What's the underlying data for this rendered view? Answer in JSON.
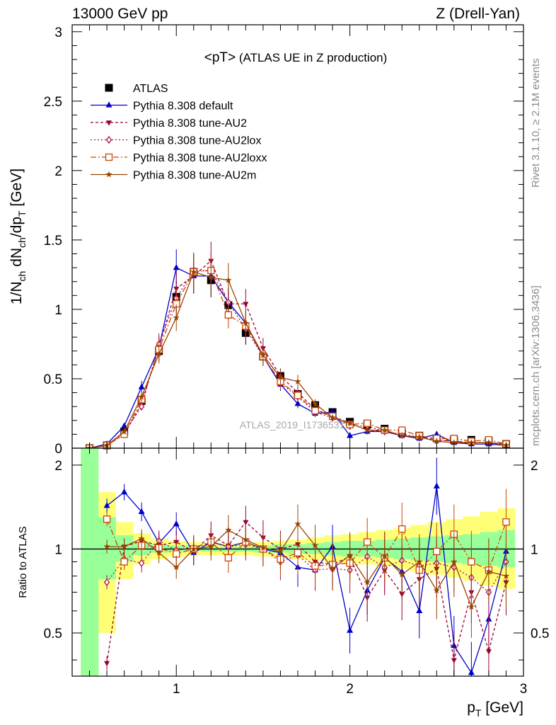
{
  "header": {
    "left": "13000 GeV pp",
    "right": "Z (Drell-Yan)"
  },
  "side_text": {
    "rivet": "Rivet 3.1.10, ≥ 2.1M events",
    "mcplots": "mcplots.cern.ch [arXiv:1306.3436]"
  },
  "watermark": "ATLAS_2019_I1736531",
  "chart_data": [
    {
      "type": "line",
      "title_main": "<pT>",
      "title_sub": " (ATLAS UE in Z production)",
      "ylabel": "1/N_ch dN_ch/dp_T [GeV]",
      "xlim": [
        0.4,
        3.0
      ],
      "ylim": [
        0,
        3.05
      ],
      "yticks": [
        0,
        0.5,
        1,
        1.5,
        2,
        2.5,
        3
      ],
      "ytick_labels": [
        "0",
        "0.5",
        "1",
        "1.5",
        "2",
        "2.5",
        "3"
      ],
      "x": [
        0.5,
        0.6,
        0.7,
        0.8,
        0.9,
        1.0,
        1.1,
        1.2,
        1.3,
        1.4,
        1.5,
        1.6,
        1.7,
        1.8,
        1.9,
        2.0,
        2.1,
        2.2,
        2.3,
        2.4,
        2.5,
        2.6,
        2.7,
        2.8,
        2.9
      ],
      "legend_position": "top-left",
      "series": [
        {
          "name": "ATLAS",
          "marker": "filled-square",
          "color": "#000000",
          "dash": "none",
          "values": [
            0.0,
            0.02,
            0.12,
            0.34,
            0.7,
            1.09,
            1.27,
            1.21,
            1.03,
            0.83,
            0.66,
            0.52,
            0.39,
            0.31,
            0.26,
            0.19,
            0.17,
            0.14,
            0.11,
            0.09,
            0.07,
            0.06,
            0.06,
            0.05,
            0.03
          ]
        },
        {
          "name": "Pythia 8.308 default",
          "marker": "filled-triangle-up",
          "color": "#0000cc",
          "dash": "none",
          "values": [
            0.0,
            0.03,
            0.16,
            0.44,
            0.72,
            1.3,
            1.24,
            1.24,
            1.05,
            0.9,
            0.66,
            0.46,
            0.32,
            0.25,
            0.26,
            0.09,
            0.12,
            0.12,
            0.09,
            0.07,
            0.1,
            0.04,
            0.03,
            0.03,
            0.02
          ]
        },
        {
          "name": "Pythia 8.308 tune-AU2",
          "marker": "filled-triangle-down",
          "color": "#990033",
          "dash": "4,3",
          "values": [
            0.0,
            0.02,
            0.1,
            0.32,
            0.73,
            1.15,
            1.24,
            1.35,
            1.04,
            1.04,
            0.72,
            0.52,
            0.4,
            0.28,
            0.23,
            0.18,
            0.13,
            0.12,
            0.09,
            0.08,
            0.06,
            0.05,
            0.04,
            0.04,
            0.03
          ]
        },
        {
          "name": "Pythia 8.308 tune-AU2lox",
          "marker": "open-diamond",
          "color": "#aa1155",
          "dash": "2,3",
          "values": [
            0.0,
            0.02,
            0.11,
            0.3,
            0.75,
            1.08,
            1.28,
            1.28,
            1.05,
            0.86,
            0.66,
            0.47,
            0.37,
            0.26,
            0.22,
            0.16,
            0.16,
            0.12,
            0.1,
            0.08,
            0.06,
            0.05,
            0.04,
            0.04,
            0.03
          ]
        },
        {
          "name": "Pythia 8.308 tune-AU2loxx",
          "marker": "open-square",
          "color": "#cc4400",
          "dash": "8,3,2,3",
          "values": [
            0.0,
            0.02,
            0.1,
            0.35,
            0.71,
            1.04,
            1.27,
            1.28,
            0.96,
            0.88,
            0.66,
            0.48,
            0.38,
            0.27,
            0.23,
            0.17,
            0.18,
            0.13,
            0.13,
            0.09,
            0.07,
            0.07,
            0.05,
            0.06,
            0.03
          ]
        },
        {
          "name": "Pythia 8.308 tune-AU2m",
          "marker": "filled-star",
          "color": "#994400",
          "dash": "none",
          "values": [
            0.0,
            0.02,
            0.12,
            0.37,
            0.68,
            0.94,
            1.27,
            1.23,
            1.21,
            0.9,
            0.67,
            0.51,
            0.48,
            0.32,
            0.22,
            0.18,
            0.13,
            0.13,
            0.09,
            0.08,
            0.05,
            0.04,
            0.04,
            0.04,
            0.02
          ]
        }
      ]
    },
    {
      "type": "line",
      "ylabel": "Ratio to ATLAS",
      "xlabel": "p_T [GeV]",
      "xlim": [
        0.4,
        3.0
      ],
      "ylim": [
        0.35,
        2.3
      ],
      "log_scale_y": true,
      "xticks": [
        1,
        2,
        3
      ],
      "xtick_labels": [
        "1",
        "2",
        "3"
      ],
      "yticks": [
        0.5,
        1,
        2
      ],
      "ytick_labels": [
        "0.5",
        "1",
        "2"
      ],
      "x": [
        0.6,
        0.7,
        0.8,
        0.9,
        1.0,
        1.1,
        1.2,
        1.3,
        1.4,
        1.5,
        1.6,
        1.7,
        1.8,
        1.9,
        2.0,
        2.1,
        2.2,
        2.3,
        2.4,
        2.5,
        2.6,
        2.7,
        2.8,
        2.9
      ],
      "band_x_edges": [
        0.45,
        0.55,
        0.65,
        0.75,
        0.85,
        0.95,
        1.05,
        1.15,
        1.25,
        1.35,
        1.45,
        1.55,
        1.65,
        1.75,
        1.85,
        1.95,
        2.05,
        2.15,
        2.25,
        2.35,
        2.45,
        2.55,
        2.65,
        2.75,
        2.85,
        2.95
      ],
      "band_stat_sys": [
        [
          0.35,
          2.3
        ],
        [
          0.5,
          1.6
        ],
        [
          0.78,
          1.25
        ],
        [
          0.88,
          1.14
        ],
        [
          0.92,
          1.09
        ],
        [
          0.94,
          1.07
        ],
        [
          0.95,
          1.06
        ],
        [
          0.95,
          1.05
        ],
        [
          0.95,
          1.05
        ],
        [
          0.95,
          1.05
        ],
        [
          0.94,
          1.06
        ],
        [
          0.93,
          1.07
        ],
        [
          0.92,
          1.08
        ],
        [
          0.91,
          1.1
        ],
        [
          0.9,
          1.12
        ],
        [
          0.89,
          1.13
        ],
        [
          0.88,
          1.15
        ],
        [
          0.87,
          1.17
        ],
        [
          0.85,
          1.19
        ],
        [
          0.83,
          1.22
        ],
        [
          0.81,
          1.25
        ],
        [
          0.79,
          1.28
        ],
        [
          0.77,
          1.31
        ],
        [
          0.74,
          1.36
        ],
        [
          0.72,
          1.4
        ]
      ],
      "band_stat": [
        [
          0.35,
          2.3
        ],
        [
          0.78,
          1.3
        ],
        [
          0.9,
          1.12
        ],
        [
          0.95,
          1.06
        ],
        [
          0.97,
          1.04
        ],
        [
          0.98,
          1.03
        ],
        [
          0.98,
          1.03
        ],
        [
          0.98,
          1.02
        ],
        [
          0.98,
          1.02
        ],
        [
          0.98,
          1.02
        ],
        [
          0.97,
          1.03
        ],
        [
          0.97,
          1.04
        ],
        [
          0.96,
          1.04
        ],
        [
          0.96,
          1.05
        ],
        [
          0.95,
          1.06
        ],
        [
          0.94,
          1.07
        ],
        [
          0.94,
          1.07
        ],
        [
          0.93,
          1.08
        ],
        [
          0.92,
          1.09
        ],
        [
          0.91,
          1.1
        ],
        [
          0.9,
          1.11
        ],
        [
          0.89,
          1.12
        ],
        [
          0.88,
          1.13
        ],
        [
          0.87,
          1.15
        ],
        [
          0.86,
          1.17
        ]
      ],
      "series": [
        {
          "name": "Pythia 8.308 default",
          "values": [
            1.43,
            1.6,
            1.36,
            1.05,
            1.23,
            0.97,
            1.06,
            1.02,
            1.06,
            1.0,
            0.97,
            0.86,
            0.84,
            1.02,
            0.51,
            0.71,
            0.93,
            0.83,
            0.6,
            1.68,
            0.45,
            0.36,
            0.56,
            0.98
          ]
        },
        {
          "name": "Pythia 8.308 tune-AU2",
          "values": [
            0.39,
            1.02,
            1.07,
            1.03,
            1.06,
            0.98,
            1.12,
            1.03,
            1.25,
            1.1,
            1.0,
            1.04,
            0.9,
            0.88,
            0.94,
            0.67,
            0.84,
            0.69,
            0.78,
            0.85,
            0.4,
            0.7,
            0.43,
            0.76
          ]
        },
        {
          "name": "Pythia 8.308 tune-AU2lox",
          "values": [
            0.76,
            0.92,
            0.89,
            1.07,
            0.99,
            1.01,
            1.06,
            1.02,
            1.04,
            1.0,
            0.9,
            0.95,
            0.84,
            0.85,
            0.84,
            0.94,
            0.86,
            0.91,
            0.87,
            0.89,
            0.86,
            0.79,
            0.7,
            0.9
          ]
        },
        {
          "name": "Pythia 8.308 tune-AU2loxx",
          "values": [
            1.28,
            0.9,
            1.03,
            1.01,
            0.96,
            1.0,
            1.06,
            0.93,
            1.06,
            1.0,
            0.92,
            0.97,
            0.87,
            0.88,
            0.89,
            1.06,
            0.93,
            1.18,
            0.84,
            0.98,
            1.13,
            0.9,
            0.84,
            1.25
          ]
        },
        {
          "name": "Pythia 8.308 tune-AU2m",
          "values": [
            1.02,
            1.02,
            1.09,
            0.97,
            0.86,
            1.0,
            1.02,
            1.17,
            1.08,
            1.01,
            0.98,
            1.23,
            1.03,
            0.85,
            0.95,
            0.76,
            0.94,
            0.81,
            0.9,
            0.71,
            0.9,
            0.62,
            0.83,
            0.8
          ]
        }
      ]
    }
  ]
}
